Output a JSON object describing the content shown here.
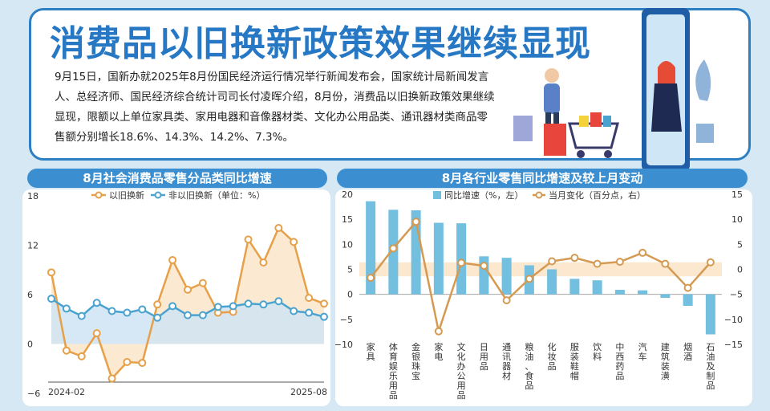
{
  "header": {
    "title": "消费品以旧换新政策效果继续显现",
    "intro": "9月15日，国新办就2025年8月份国民经济运行情况举行新闻发布会，国家统计局新闻发言人、总经济师、国民经济综合统计司司长付凌晖介绍，8月份，消费品以旧换新政策效果继续显现，限额以上单位家具类、家用电器和音像器材类、文化办公用品类、通讯器材类商品零售额分别增长18.6%、14.3%、14.2%、7.3%。"
  },
  "panel_left": {
    "title": "8月社会消费品零售分品类同比增速"
  },
  "panel_right": {
    "title": "8月各行业零售同比增速及较上月变动"
  },
  "colors": {
    "trade_in": "#e6a049",
    "non_trade_in": "#4aa3cf",
    "bar": "#72bfdf",
    "change_line": "#d49a52",
    "header_bg": "#3b8fd0",
    "title_blue": "#2678c4"
  },
  "chart_data": [
    {
      "type": "line",
      "legend": {
        "items": [
          "以旧换新",
          "非以旧换新（单位：%）"
        ],
        "position": "top"
      },
      "yticks": [
        "18",
        "12",
        "6",
        "0",
        "−6"
      ],
      "ylim": [
        -6,
        18
      ],
      "x_start_label": "2024-02",
      "x_end_label": "2025-08",
      "x": [
        "2024-02",
        "2024-03",
        "2024-04",
        "2024-05",
        "2024-06",
        "2024-07",
        "2024-08",
        "2024-09",
        "2024-10",
        "2024-11",
        "2024-12",
        "2025-01",
        "2025-02",
        "2025-03",
        "2025-04",
        "2025-05",
        "2025-06",
        "2025-07",
        "2025-08"
      ],
      "series": [
        {
          "name": "以旧换新",
          "values": [
            8.7,
            -0.8,
            -1.5,
            1.3,
            -4.2,
            -2.2,
            -2.3,
            4.8,
            10.2,
            6.6,
            7.4,
            3.8,
            3.9,
            12.7,
            9.9,
            14.1,
            12.4,
            5.6,
            4.9
          ]
        },
        {
          "name": "非以旧换新",
          "values": [
            5.5,
            4.3,
            3.4,
            5.0,
            4.0,
            3.8,
            4.2,
            3.2,
            4.6,
            3.5,
            3.5,
            4.5,
            4.6,
            4.9,
            4.8,
            5.2,
            4.0,
            3.8,
            3.3
          ]
        }
      ]
    },
    {
      "type": "bar",
      "legend": {
        "items": [
          "同比增速（%，左）",
          "当月变化（百分点，右）"
        ],
        "position": "top"
      },
      "categories": [
        "家具",
        "体育娱乐用品",
        "金银珠宝",
        "家电",
        "文化办公用品",
        "日用品",
        "通讯器材",
        "粮油、食品",
        "化妆品",
        "服装鞋帽",
        "饮料",
        "中西药品",
        "汽车",
        "建筑装潢",
        "烟酒",
        "石油及制品"
      ],
      "left_ticks": [
        "20",
        "15",
        "10",
        "5",
        "0",
        "−5",
        "−10"
      ],
      "right_ticks": [
        "15",
        "10",
        "5",
        "0",
        "−5",
        "−10",
        "−15"
      ],
      "ylim_left": [
        -10,
        20
      ],
      "ylim_right": [
        -15,
        15
      ],
      "series": [
        {
          "name": "同比增速",
          "axis": "left",
          "values": [
            18.6,
            16.9,
            16.8,
            14.3,
            14.2,
            7.6,
            7.3,
            5.8,
            5.0,
            3.1,
            2.8,
            0.9,
            0.8,
            -0.7,
            -2.3,
            -8.0
          ]
        },
        {
          "name": "当月变化",
          "axis": "right",
          "values": [
            -1.7,
            4.2,
            9.5,
            -12.4,
            1.3,
            0.7,
            -6.2,
            -1.9,
            1.6,
            2.3,
            1.1,
            1.5,
            3.3,
            1.1,
            -3.7,
            1.4
          ]
        }
      ]
    }
  ]
}
